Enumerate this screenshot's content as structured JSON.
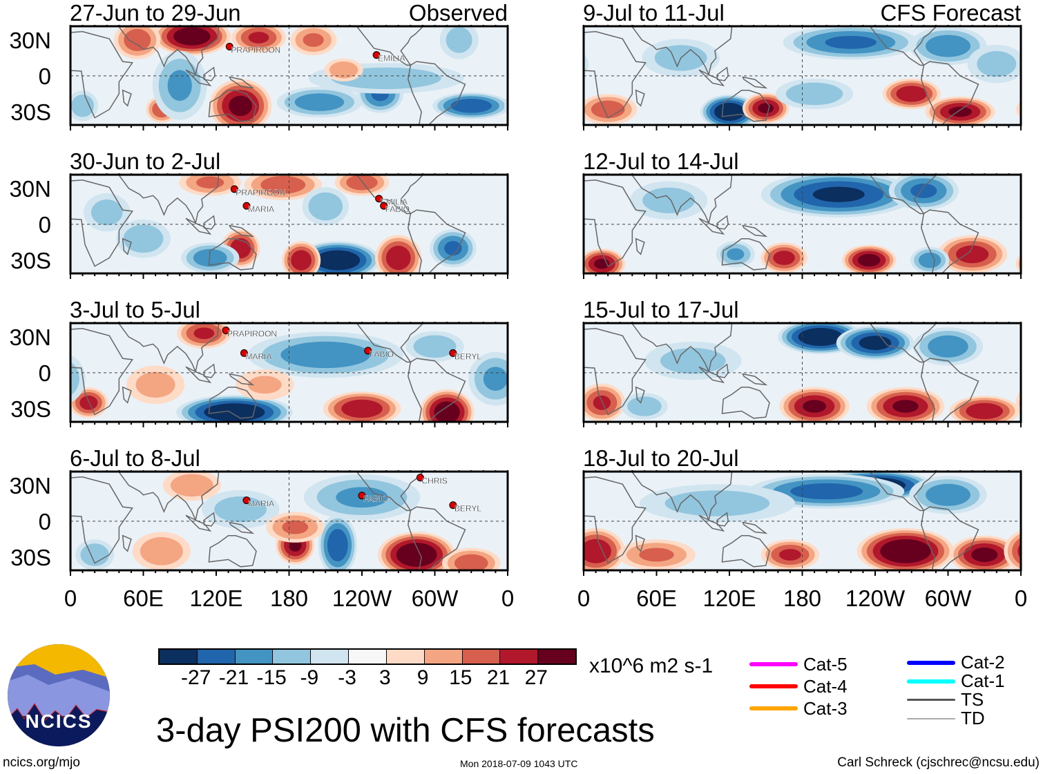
{
  "panels": [
    {
      "title": "27-Jun to 29-Jun",
      "tag": "Observed",
      "col": 0,
      "row": 0,
      "anomalies": [
        [
          100,
          33,
          28,
          20,
          10
        ],
        [
          55,
          30,
          15,
          12,
          10
        ],
        [
          155,
          32,
          18,
          14,
          8
        ],
        [
          200,
          30,
          12,
          12,
          8
        ],
        [
          140,
          -25,
          25,
          16,
          14
        ],
        [
          75,
          -28,
          16,
          8,
          7
        ],
        [
          90,
          -8,
          -12,
          14,
          18
        ],
        [
          205,
          -22,
          -15,
          22,
          8
        ],
        [
          255,
          -15,
          -18,
          12,
          10
        ],
        [
          330,
          -25,
          -22,
          20,
          7
        ],
        [
          260,
          -2,
          -9,
          40,
          8
        ],
        [
          10,
          -25,
          -10,
          8,
          8
        ],
        [
          320,
          30,
          -8,
          10,
          10
        ],
        [
          225,
          5,
          10,
          10,
          6
        ]
      ],
      "storms": [
        {
          "name": "PRAPIROON",
          "lon": 131,
          "lat": 21
        },
        {
          "name": "EMILIA",
          "lon": 252,
          "lat": 14
        }
      ]
    },
    {
      "title": "30-Jun to 2-Jul",
      "tag": "",
      "col": 0,
      "row": 1,
      "anomalies": [
        [
          220,
          -30,
          -30,
          22,
          10
        ],
        [
          190,
          -30,
          22,
          10,
          10
        ],
        [
          270,
          -28,
          22,
          12,
          12
        ],
        [
          315,
          -20,
          -18,
          12,
          10
        ],
        [
          140,
          -20,
          22,
          10,
          10
        ],
        [
          115,
          -28,
          -15,
          15,
          8
        ],
        [
          60,
          -12,
          -10,
          14,
          10
        ],
        [
          175,
          33,
          15,
          20,
          8
        ],
        [
          240,
          35,
          15,
          14,
          7
        ],
        [
          115,
          35,
          12,
          16,
          7
        ],
        [
          210,
          15,
          -10,
          12,
          10
        ],
        [
          30,
          10,
          -8,
          12,
          10
        ]
      ],
      "storms": [
        {
          "name": "PRAPIROON",
          "lon": 135,
          "lat": 26
        },
        {
          "name": "MARIA",
          "lon": 145,
          "lat": 12
        },
        {
          "name": "EMILIA",
          "lon": 254,
          "lat": 18
        },
        {
          "name": "FABIO",
          "lon": 258,
          "lat": 12
        }
      ]
    },
    {
      "title": "3-Jul to 5-Jul",
      "tag": "",
      "col": 0,
      "row": 2,
      "anomalies": [
        [
          135,
          -33,
          -30,
          30,
          9
        ],
        [
          310,
          -33,
          28,
          14,
          12
        ],
        [
          240,
          -30,
          22,
          20,
          9
        ],
        [
          15,
          -25,
          20,
          10,
          8
        ],
        [
          110,
          33,
          18,
          14,
          8
        ],
        [
          210,
          15,
          -15,
          40,
          12
        ],
        [
          300,
          22,
          -10,
          15,
          8
        ],
        [
          350,
          -5,
          -12,
          14,
          14
        ],
        [
          70,
          -10,
          8,
          15,
          10
        ],
        [
          160,
          -10,
          6,
          15,
          8
        ]
      ],
      "storms": [
        {
          "name": "PRAPIROON",
          "lon": 128,
          "lat": 32
        },
        {
          "name": "MARIA",
          "lon": 143,
          "lat": 13
        },
        {
          "name": "FABIO",
          "lon": 245,
          "lat": 15
        },
        {
          "name": "BERYL",
          "lon": 315,
          "lat": 13
        }
      ]
    },
    {
      "title": "6-Jul to 8-Jul",
      "tag": "",
      "col": 0,
      "row": 3,
      "anomalies": [
        [
          285,
          -28,
          30,
          20,
          12
        ],
        [
          185,
          -20,
          24,
          10,
          10
        ],
        [
          220,
          -20,
          -22,
          10,
          16
        ],
        [
          330,
          -35,
          15,
          15,
          8
        ],
        [
          75,
          -25,
          10,
          15,
          10
        ],
        [
          20,
          -28,
          -10,
          10,
          8
        ],
        [
          240,
          20,
          -12,
          30,
          12
        ],
        [
          140,
          10,
          -8,
          20,
          10
        ],
        [
          100,
          30,
          10,
          15,
          8
        ],
        [
          185,
          -5,
          12,
          15,
          8
        ]
      ],
      "storms": [
        {
          "name": "MARIA",
          "lon": 145,
          "lat": 14
        },
        {
          "name": "CHRIS",
          "lon": 288,
          "lat": 33
        },
        {
          "name": "FABIO",
          "lon": 240,
          "lat": 18
        },
        {
          "name": "BERYL",
          "lon": 315,
          "lat": 10
        }
      ]
    },
    {
      "title": "9-Jul to 11-Jul",
      "tag": "CFS Forecast",
      "col": 1,
      "row": 0,
      "anomalies": [
        [
          120,
          -30,
          -30,
          15,
          9
        ],
        [
          150,
          -27,
          24,
          12,
          8
        ],
        [
          270,
          -15,
          22,
          15,
          8
        ],
        [
          310,
          -30,
          24,
          18,
          8
        ],
        [
          20,
          -28,
          15,
          15,
          8
        ],
        [
          220,
          28,
          -18,
          35,
          9
        ],
        [
          300,
          25,
          -15,
          20,
          10
        ],
        [
          80,
          15,
          -8,
          20,
          10
        ],
        [
          190,
          -15,
          -10,
          20,
          8
        ],
        [
          340,
          10,
          -8,
          15,
          10
        ]
      ],
      "storms": []
    },
    {
      "title": "12-Jul to 14-Jul",
      "tag": "",
      "col": 1,
      "row": 1,
      "anomalies": [
        [
          210,
          25,
          -24,
          40,
          12
        ],
        [
          280,
          28,
          -18,
          18,
          10
        ],
        [
          15,
          -33,
          24,
          12,
          8
        ],
        [
          235,
          -30,
          26,
          14,
          8
        ],
        [
          165,
          -28,
          20,
          12,
          8
        ],
        [
          320,
          -25,
          20,
          18,
          10
        ],
        [
          285,
          -30,
          -15,
          10,
          7
        ],
        [
          125,
          -25,
          -12,
          10,
          7
        ],
        [
          70,
          20,
          -8,
          20,
          10
        ]
      ],
      "storms": []
    },
    {
      "title": "15-Jul to 17-Jul",
      "tag": "",
      "col": 1,
      "row": 2,
      "anomalies": [
        [
          195,
          30,
          -30,
          22,
          9
        ],
        [
          240,
          25,
          -26,
          20,
          9
        ],
        [
          300,
          22,
          -15,
          18,
          10
        ],
        [
          190,
          -28,
          24,
          18,
          10
        ],
        [
          265,
          -28,
          24,
          20,
          10
        ],
        [
          330,
          -32,
          22,
          18,
          8
        ],
        [
          15,
          -25,
          18,
          12,
          10
        ],
        [
          50,
          -28,
          -10,
          12,
          7
        ],
        [
          90,
          10,
          -8,
          25,
          10
        ]
      ],
      "storms": []
    },
    {
      "title": "18-Jul to 20-Jul",
      "tag": "",
      "col": 1,
      "row": 3,
      "anomalies": [
        [
          240,
          30,
          -30,
          30,
          8
        ],
        [
          200,
          25,
          -20,
          40,
          9
        ],
        [
          300,
          22,
          -15,
          20,
          10
        ],
        [
          265,
          -25,
          30,
          25,
          12
        ],
        [
          330,
          -28,
          25,
          18,
          10
        ],
        [
          10,
          -25,
          22,
          15,
          12
        ],
        [
          60,
          -28,
          12,
          20,
          8
        ],
        [
          170,
          -28,
          18,
          15,
          8
        ],
        [
          110,
          15,
          -8,
          40,
          10
        ]
      ],
      "storms": []
    }
  ],
  "axes": {
    "ylabels": [
      "30N",
      "0",
      "30S"
    ],
    "xlabels": [
      "0",
      "60E",
      "120E",
      "180",
      "120W",
      "60W",
      "0"
    ]
  },
  "colorbar": {
    "colors": [
      "#0b305f",
      "#2166ac",
      "#4393c3",
      "#92c5de",
      "#d1e5f0",
      "#f7f7f7",
      "#fddbc7",
      "#f4a582",
      "#d6604d",
      "#b2182b",
      "#67001f"
    ],
    "labels": [
      "-27",
      "-21",
      "-15",
      "-9",
      "-3",
      "3",
      "9",
      "15",
      "21",
      "27"
    ],
    "units": "x10^6 m2 s-1"
  },
  "legend": [
    {
      "label": "Cat-5",
      "color": "#ff00ff"
    },
    {
      "label": "Cat-4",
      "color": "#ff0000"
    },
    {
      "label": "Cat-3",
      "color": "#ffa500"
    },
    {
      "label": "Cat-2",
      "color": "#0000ff"
    },
    {
      "label": "Cat-1",
      "color": "#00ffff"
    },
    {
      "label": "TS",
      "color": "#555555"
    },
    {
      "label": "TD",
      "color": "#aaaaaa"
    }
  ],
  "logo_text": "NCICS",
  "title": "3-day PSI200 with CFS forecasts",
  "footer": {
    "left": "ncics.org/mjo",
    "center": "Mon 2018-07-09 1043 UTC",
    "right": "Carl Schreck (cjschrec@ncsu.edu)"
  }
}
